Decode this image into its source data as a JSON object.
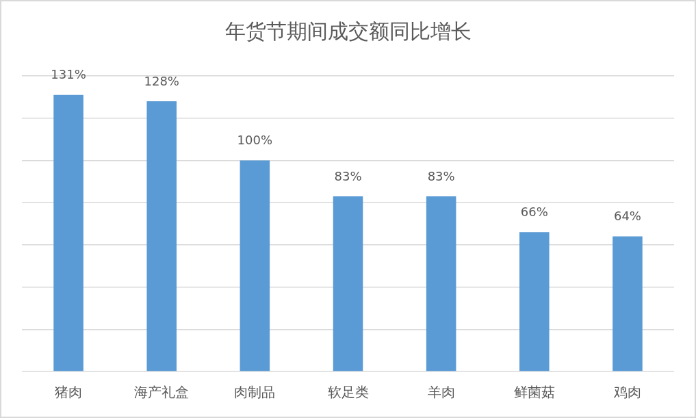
{
  "chart_data": {
    "type": "bar",
    "title": "年货节期间成交额同比增长",
    "categories": [
      "猪肉",
      "海产礼盒",
      "肉制品",
      "软足类",
      "羊肉",
      "鲜菌菇",
      "鸡肉"
    ],
    "values": [
      131,
      128,
      100,
      83,
      83,
      66,
      64
    ],
    "value_labels": [
      "131%",
      "128%",
      "100%",
      "83%",
      "83%",
      "66%",
      "64%"
    ],
    "color": "#5b9bd5",
    "ylim": [
      0,
      140
    ],
    "yticks": [
      {
        "value": 0,
        "label": null
      },
      {
        "value": 20,
        "label": null
      },
      {
        "value": 40,
        "label": null
      },
      {
        "value": 60,
        "label": null
      },
      {
        "value": 80,
        "label": null
      },
      {
        "value": 100,
        "label": null
      },
      {
        "value": 120,
        "label": null
      },
      {
        "value": 140,
        "label": null
      }
    ],
    "grid": "y",
    "tick_labels": "x"
  }
}
